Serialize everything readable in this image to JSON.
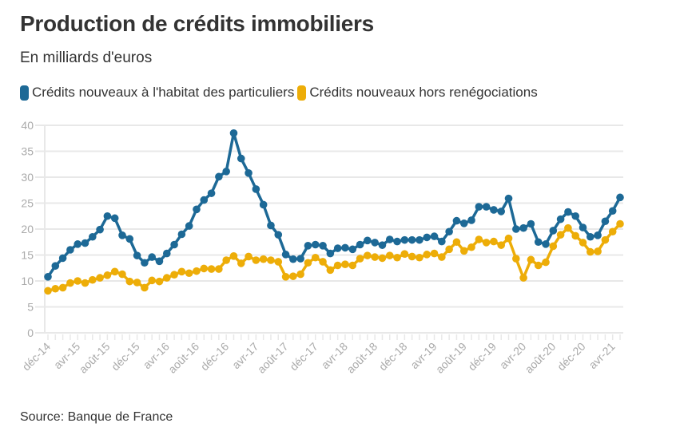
{
  "title": "Production de crédits immobiliers",
  "subtitle": "En milliards d'euros",
  "source": "Source: Banque de France",
  "colors": {
    "blue": "#1d6996",
    "yellow": "#edad08",
    "grid": "#e8e8e8",
    "tick": "#aaaaaa"
  },
  "legend": [
    {
      "label": "Crédits nouveaux à l'habitat des particuliers",
      "color": "#1d6996"
    },
    {
      "label": "Crédits nouveaux hors renégociations",
      "color": "#edad08"
    }
  ],
  "chart_data": {
    "type": "line",
    "title": "Production de crédits immobiliers",
    "subtitle": "En milliards d'euros",
    "xlabel": "",
    "ylabel": "",
    "ylim": [
      0,
      40
    ],
    "yticks": [
      0,
      5,
      10,
      15,
      20,
      25,
      30,
      35,
      40
    ],
    "grid": true,
    "legend_position": "top-left",
    "x_start": "déc-14",
    "x_end": "mai-21",
    "n_points": 78,
    "x_tick_labels": [
      {
        "index": 0,
        "label": "déc-14"
      },
      {
        "index": 4,
        "label": "avr-15"
      },
      {
        "index": 8,
        "label": "août-15"
      },
      {
        "index": 12,
        "label": "déc-15"
      },
      {
        "index": 16,
        "label": "avr-16"
      },
      {
        "index": 20,
        "label": "août-16"
      },
      {
        "index": 24,
        "label": "déc-16"
      },
      {
        "index": 28,
        "label": "avr-17"
      },
      {
        "index": 32,
        "label": "août-17"
      },
      {
        "index": 36,
        "label": "déc-17"
      },
      {
        "index": 40,
        "label": "avr-18"
      },
      {
        "index": 44,
        "label": "août-18"
      },
      {
        "index": 48,
        "label": "déc-18"
      },
      {
        "index": 52,
        "label": "avr-19"
      },
      {
        "index": 56,
        "label": "août-19"
      },
      {
        "index": 60,
        "label": "déc-19"
      },
      {
        "index": 64,
        "label": "avr-20"
      },
      {
        "index": 68,
        "label": "août-20"
      },
      {
        "index": 72,
        "label": "déc-20"
      },
      {
        "index": 76,
        "label": "avr-21"
      }
    ],
    "series": [
      {
        "name": "Crédits nouveaux à l'habitat des particuliers",
        "color": "#1d6996",
        "values": [
          10.8,
          12.9,
          14.4,
          16.0,
          17.1,
          17.3,
          18.5,
          19.9,
          22.5,
          22.1,
          18.8,
          18.1,
          14.9,
          13.5,
          14.6,
          13.8,
          15.3,
          17.0,
          19.0,
          20.6,
          23.8,
          25.6,
          26.9,
          30.1,
          31.1,
          38.5,
          33.6,
          30.8,
          27.7,
          24.7,
          20.7,
          18.9,
          15.1,
          14.2,
          14.3,
          16.8,
          17.0,
          16.8,
          15.3,
          16.3,
          16.4,
          16.1,
          17.0,
          17.8,
          17.4,
          16.9,
          18.0,
          17.6,
          17.9,
          17.9,
          17.9,
          18.4,
          18.6,
          17.6,
          19.5,
          21.6,
          21.1,
          21.7,
          24.3,
          24.3,
          23.7,
          23.4,
          25.9,
          20.0,
          20.2,
          21.0,
          17.5,
          17.1,
          19.7,
          21.9,
          23.3,
          22.5,
          20.3,
          18.5,
          18.8,
          21.5,
          23.5,
          26.1
        ]
      },
      {
        "name": "Crédits nouveaux hors renégociations",
        "color": "#edad08",
        "values": [
          8.1,
          8.5,
          8.7,
          9.6,
          10.0,
          9.6,
          10.2,
          10.6,
          11.1,
          11.8,
          11.3,
          9.9,
          9.7,
          8.7,
          10.1,
          9.9,
          10.6,
          11.2,
          11.8,
          11.5,
          11.9,
          12.4,
          12.3,
          12.3,
          14.0,
          14.8,
          13.4,
          14.7,
          14.0,
          14.2,
          14.0,
          13.7,
          10.8,
          10.9,
          11.3,
          13.5,
          14.5,
          13.7,
          12.1,
          13.0,
          13.2,
          13.0,
          14.3,
          14.9,
          14.6,
          14.4,
          14.9,
          14.5,
          15.2,
          14.7,
          14.5,
          15.1,
          15.3,
          14.6,
          16.1,
          17.5,
          15.8,
          16.5,
          18.0,
          17.4,
          17.6,
          16.9,
          18.2,
          14.3,
          10.6,
          14.1,
          13.0,
          13.6,
          16.7,
          18.9,
          20.2,
          18.7,
          17.4,
          15.6,
          15.7,
          17.9,
          19.5,
          21.0
        ]
      }
    ]
  }
}
